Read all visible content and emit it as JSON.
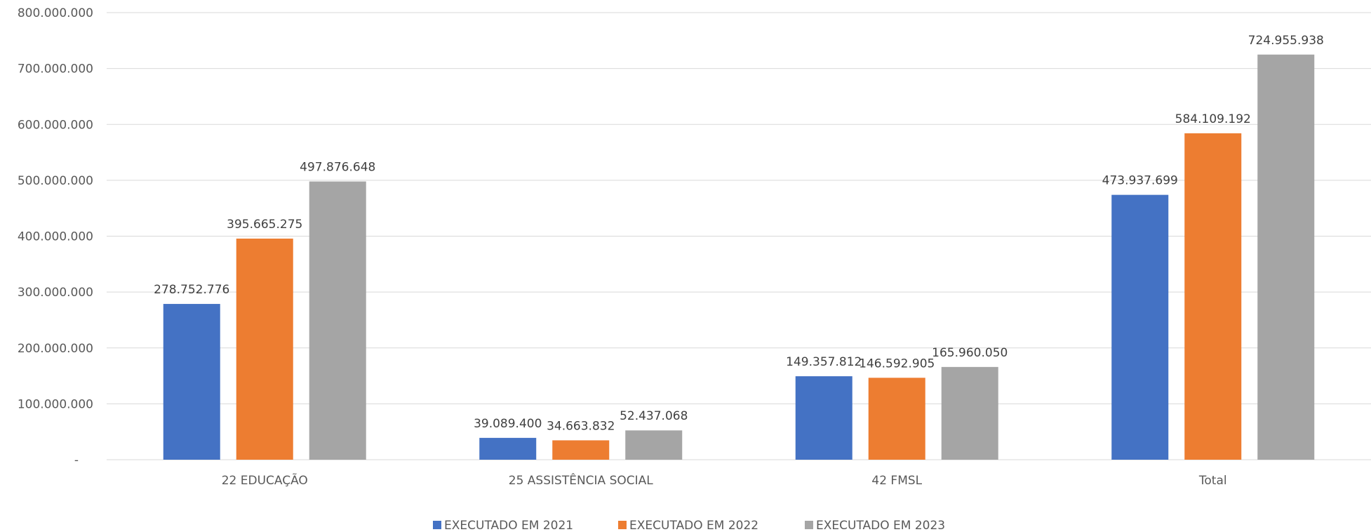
{
  "chart_data": {
    "type": "bar",
    "categories": [
      "22 EDUCAÇÃO",
      "25 ASSISTÊNCIA SOCIAL",
      "42 FMSL",
      "Total"
    ],
    "series": [
      {
        "name": "EXECUTADO EM 2021",
        "color": "#4472c4",
        "values": [
          278752776,
          39089400,
          149357812,
          473937699
        ],
        "labels": [
          "278.752.776",
          "39.089.400",
          "149.357.812",
          "473.937.699"
        ]
      },
      {
        "name": "EXECUTADO EM 2022",
        "color": "#ed7d31",
        "values": [
          395665275,
          34663832,
          146592905,
          584109192
        ],
        "labels": [
          "395.665.275",
          "34.663.832",
          "146.592.905",
          "584.109.192"
        ]
      },
      {
        "name": "EXECUTADO EM 2023",
        "color": "#a5a5a5",
        "values": [
          497876648,
          52437068,
          165960050,
          724955938
        ],
        "labels": [
          "497.876.648",
          "52.437.068",
          "165.960.050",
          "724.955.938"
        ]
      }
    ],
    "y_ticks": [
      {
        "value": 0,
        "label": "-"
      },
      {
        "value": 100000000,
        "label": "100.000.000"
      },
      {
        "value": 200000000,
        "label": "200.000.000"
      },
      {
        "value": 300000000,
        "label": "300.000.000"
      },
      {
        "value": 400000000,
        "label": "400.000.000"
      },
      {
        "value": 500000000,
        "label": "500.000.000"
      },
      {
        "value": 600000000,
        "label": "600.000.000"
      },
      {
        "value": 700000000,
        "label": "700.000.000"
      },
      {
        "value": 800000000,
        "label": "800.000.000"
      }
    ],
    "ylim": [
      0,
      800000000
    ],
    "title": "",
    "xlabel": "",
    "ylabel": "",
    "grid": true,
    "legend_position": "bottom"
  }
}
